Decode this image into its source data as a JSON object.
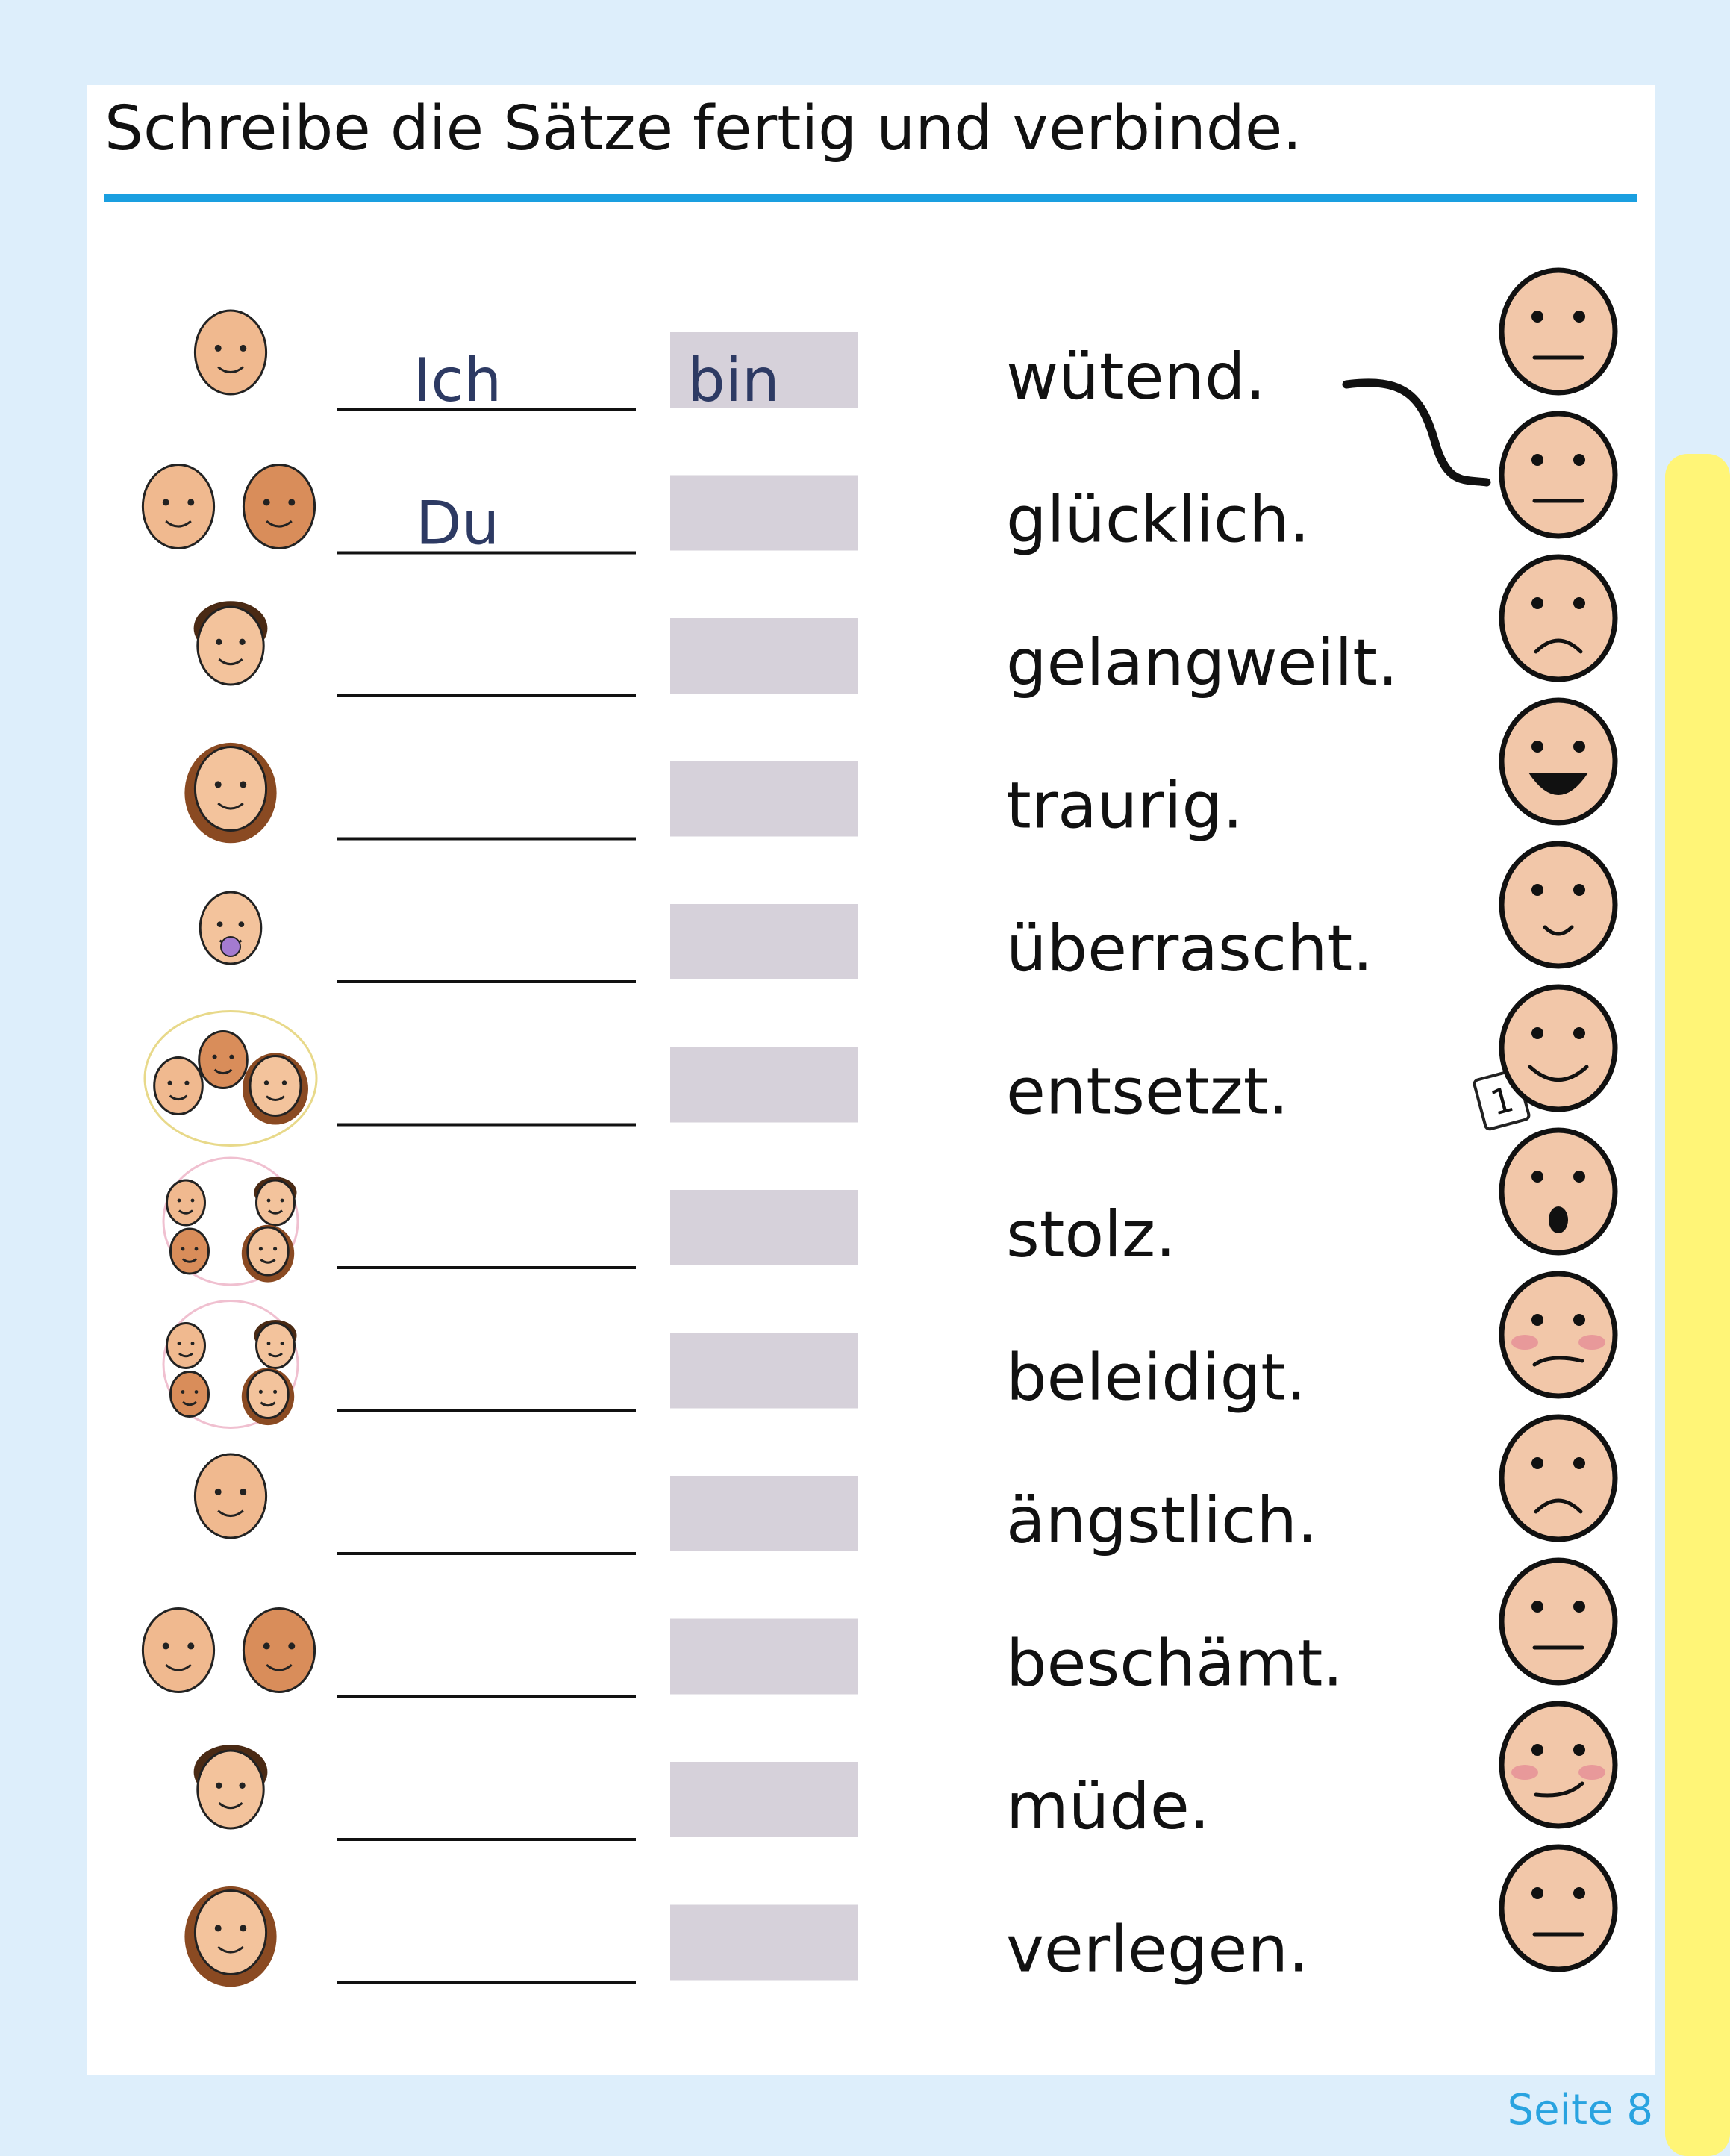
{
  "header": {
    "title": "Schreibe die Sätze fertig und verbinde."
  },
  "rows": [
    {
      "pronoun": "Ich",
      "verb": "bin",
      "word": "wütend."
    },
    {
      "pronoun": "Du",
      "word": "glücklich."
    },
    {
      "word": "gelangweilt."
    },
    {
      "word": "traurig."
    },
    {
      "word": "überrascht."
    },
    {
      "word": "entsetzt."
    },
    {
      "word": "stolz."
    },
    {
      "word": "beleidigt."
    },
    {
      "word": "ängstlich."
    },
    {
      "word": "beschämt."
    },
    {
      "word": "müde."
    },
    {
      "word": "verlegen."
    }
  ],
  "note": "1",
  "footer": {
    "page": "Seite 8"
  }
}
